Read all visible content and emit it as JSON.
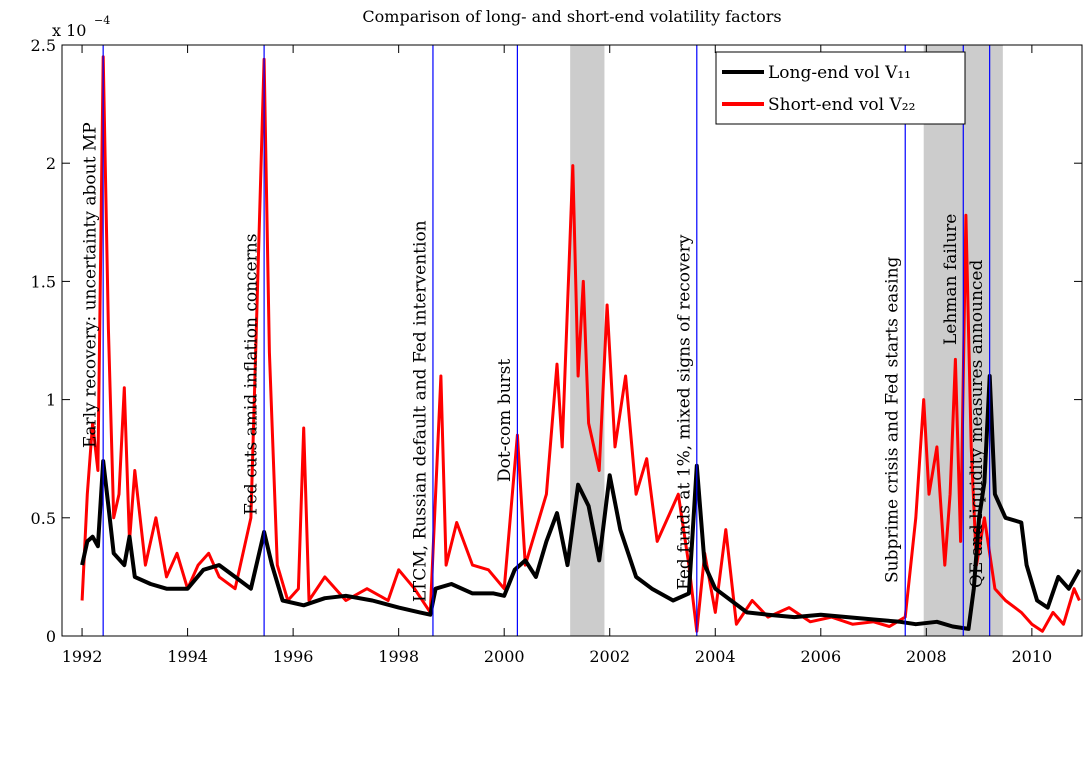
{
  "chart_data": {
    "type": "line",
    "title": "Comparison of long- and short-end volatility factors",
    "y_multiplier": {
      "base": "x 10",
      "exponent": "−4"
    },
    "xlim": [
      1991.62,
      2010.95
    ],
    "ylim": [
      0,
      2.5
    ],
    "xticks": [
      1992,
      1994,
      1996,
      1998,
      2000,
      2002,
      2004,
      2006,
      2008,
      2010
    ],
    "yticks": [
      0,
      0.5,
      1,
      1.5,
      2,
      2.5
    ],
    "grid": false,
    "legend": "northeast",
    "shaded_regions": [
      [
        2001.25,
        2001.9
      ],
      [
        2007.95,
        2009.45
      ]
    ],
    "shade_color": "#cccccc",
    "event_color": "#0000ff",
    "events": [
      {
        "x": 1992.4,
        "label": "Early recovery: uncertainty about MP"
      },
      {
        "x": 1995.45,
        "label": "Fed cuts amid inflation concerns"
      },
      {
        "x": 1998.65,
        "label": "LTCM, Russian default and Fed intervention"
      },
      {
        "x": 2000.25,
        "label": "Dot-com burst"
      },
      {
        "x": 2003.65,
        "label": "Fed funds at 1%, mixed signs of recovery"
      },
      {
        "x": 2007.6,
        "label": "Subprime crisis and Fed starts easing"
      },
      {
        "x": 2008.7,
        "label": "Lehman failure"
      },
      {
        "x": 2009.2,
        "label": "QE and liquidity measures announced"
      }
    ],
    "series": [
      {
        "name": "Short-end vol V₂₂",
        "color": "#ff0000",
        "x": [
          1992.0,
          1992.1,
          1992.2,
          1992.3,
          1992.4,
          1992.5,
          1992.6,
          1992.7,
          1992.8,
          1992.9,
          1993.0,
          1993.2,
          1993.4,
          1993.6,
          1993.8,
          1994.0,
          1994.2,
          1994.4,
          1994.6,
          1994.9,
          1995.2,
          1995.45,
          1995.55,
          1995.7,
          1995.9,
          1996.1,
          1996.2,
          1996.3,
          1996.6,
          1997.0,
          1997.4,
          1997.8,
          1998.0,
          1998.3,
          1998.6,
          1998.7,
          1998.8,
          1998.9,
          1999.1,
          1999.4,
          1999.7,
          2000.0,
          2000.25,
          2000.4,
          2000.6,
          2000.8,
          2001.0,
          2001.1,
          2001.3,
          2001.4,
          2001.5,
          2001.6,
          2001.8,
          2001.95,
          2002.1,
          2002.3,
          2002.5,
          2002.7,
          2002.9,
          2003.1,
          2003.3,
          2003.5,
          2003.65,
          2003.8,
          2004.0,
          2004.2,
          2004.4,
          2004.7,
          2005.0,
          2005.4,
          2005.8,
          2006.2,
          2006.6,
          2007.0,
          2007.3,
          2007.6,
          2007.8,
          2007.95,
          2008.05,
          2008.2,
          2008.35,
          2008.45,
          2008.55,
          2008.65,
          2008.75,
          2008.85,
          2008.95,
          2009.1,
          2009.3,
          2009.5,
          2009.8,
          2010.0,
          2010.2,
          2010.4,
          2010.6,
          2010.8,
          2010.9
        ],
        "values": [
          0.15,
          0.6,
          0.9,
          0.7,
          2.45,
          1.3,
          0.5,
          0.6,
          1.05,
          0.4,
          0.7,
          0.3,
          0.5,
          0.25,
          0.35,
          0.2,
          0.3,
          0.35,
          0.25,
          0.2,
          0.5,
          2.44,
          1.2,
          0.3,
          0.15,
          0.2,
          0.88,
          0.15,
          0.25,
          0.15,
          0.2,
          0.15,
          0.28,
          0.2,
          0.1,
          0.6,
          1.1,
          0.3,
          0.48,
          0.3,
          0.28,
          0.2,
          0.85,
          0.3,
          0.45,
          0.6,
          1.15,
          0.8,
          1.99,
          1.1,
          1.5,
          0.9,
          0.7,
          1.4,
          0.8,
          1.1,
          0.6,
          0.75,
          0.4,
          0.5,
          0.6,
          0.3,
          0.02,
          0.35,
          0.1,
          0.45,
          0.05,
          0.15,
          0.08,
          0.12,
          0.06,
          0.08,
          0.05,
          0.06,
          0.04,
          0.08,
          0.5,
          1.0,
          0.6,
          0.8,
          0.3,
          0.6,
          1.17,
          0.4,
          1.78,
          0.8,
          0.3,
          0.5,
          0.2,
          0.15,
          0.1,
          0.05,
          0.02,
          0.1,
          0.05,
          0.2,
          0.15
        ]
      },
      {
        "name": "Long-end vol V₁₁",
        "color": "#000000",
        "x": [
          1992.0,
          1992.1,
          1992.2,
          1992.3,
          1992.4,
          1992.5,
          1992.6,
          1992.8,
          1992.9,
          1993.0,
          1993.3,
          1993.6,
          1994.0,
          1994.3,
          1994.6,
          1994.9,
          1995.2,
          1995.45,
          1995.6,
          1995.8,
          1996.2,
          1996.6,
          1997.0,
          1997.5,
          1998.0,
          1998.4,
          1998.6,
          1998.7,
          1999.0,
          1999.4,
          1999.8,
          2000.0,
          2000.2,
          2000.4,
          2000.6,
          2000.8,
          2001.0,
          2001.2,
          2001.4,
          2001.6,
          2001.8,
          2002.0,
          2002.2,
          2002.5,
          2002.8,
          2003.2,
          2003.5,
          2003.65,
          2003.8,
          2004.0,
          2004.3,
          2004.6,
          2005.0,
          2005.5,
          2006.0,
          2006.5,
          2007.0,
          2007.5,
          2007.8,
          2008.2,
          2008.5,
          2008.8,
          2008.9,
          2009.0,
          2009.1,
          2009.2,
          2009.3,
          2009.5,
          2009.8,
          2009.9,
          2010.1,
          2010.3,
          2010.5,
          2010.7,
          2010.9
        ],
        "values": [
          0.3,
          0.4,
          0.42,
          0.38,
          0.74,
          0.55,
          0.35,
          0.3,
          0.42,
          0.25,
          0.22,
          0.2,
          0.2,
          0.28,
          0.3,
          0.25,
          0.2,
          0.44,
          0.3,
          0.15,
          0.13,
          0.16,
          0.17,
          0.15,
          0.12,
          0.1,
          0.09,
          0.2,
          0.22,
          0.18,
          0.18,
          0.17,
          0.28,
          0.32,
          0.25,
          0.4,
          0.52,
          0.3,
          0.64,
          0.55,
          0.32,
          0.68,
          0.45,
          0.25,
          0.2,
          0.15,
          0.18,
          0.72,
          0.3,
          0.2,
          0.15,
          0.1,
          0.09,
          0.08,
          0.09,
          0.08,
          0.07,
          0.06,
          0.05,
          0.06,
          0.04,
          0.03,
          0.2,
          0.5,
          0.65,
          1.1,
          0.6,
          0.5,
          0.48,
          0.3,
          0.15,
          0.12,
          0.25,
          0.2,
          0.28
        ]
      }
    ]
  }
}
